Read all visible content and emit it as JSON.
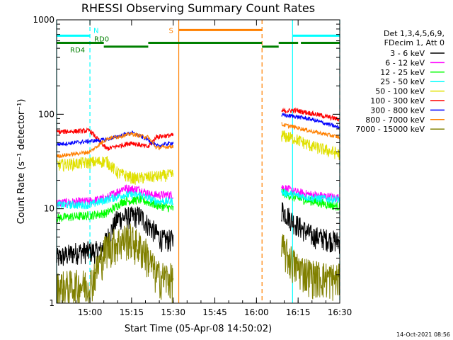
{
  "chart_data": {
    "type": "line",
    "title": "RHESSI Observing Summary Count Rates",
    "xlabel": "Start Time (05-Apr-08 14:50:02)",
    "ylabel": "Count Rate (s⁻¹ detector⁻¹)",
    "yscale": "log",
    "ylim": [
      1,
      1000
    ],
    "xlim_minutes": [
      -2,
      100
    ],
    "x_tick_labels": [
      "15:00",
      "15:15",
      "15:30",
      "15:45",
      "16:00",
      "16:15",
      "16:30"
    ],
    "x_ticks_minutes": [
      10,
      25,
      40,
      55,
      70,
      85,
      100
    ],
    "y_tick_labels": [
      "1",
      "10",
      "100",
      "1000"
    ],
    "y_ticks": [
      1,
      10,
      100,
      1000
    ],
    "legend_header": [
      "Det 1,3,4,5,6,9,",
      "FDecim 1, Att 0"
    ],
    "legend_position": "top-right",
    "series": [
      {
        "name": "3 - 6 keV",
        "color": "#000000",
        "points": [
          [
            -2,
            3
          ],
          [
            5,
            3.5
          ],
          [
            14,
            3.6
          ],
          [
            20,
            8
          ],
          [
            28,
            8.5
          ],
          [
            36,
            4.7
          ],
          [
            40,
            4.7
          ]
        ],
        "points2": [
          [
            79,
            10
          ],
          [
            84,
            7
          ],
          [
            90,
            5.2
          ],
          [
            100,
            4.5
          ]
        ]
      },
      {
        "name": "6 - 12 keV",
        "color": "#ff00ff",
        "points": [
          [
            -2,
            11.5
          ],
          [
            10,
            12
          ],
          [
            16,
            13
          ],
          [
            22,
            16.5
          ],
          [
            28,
            16
          ],
          [
            32,
            14
          ],
          [
            40,
            14
          ]
        ],
        "points2": [
          [
            79,
            17
          ],
          [
            84,
            15
          ],
          [
            90,
            14
          ],
          [
            100,
            13
          ]
        ]
      },
      {
        "name": "12 - 25 keV",
        "color": "#00ff00",
        "points": [
          [
            -2,
            8
          ],
          [
            10,
            8.5
          ],
          [
            16,
            9
          ],
          [
            22,
            12
          ],
          [
            28,
            12.5
          ],
          [
            34,
            11
          ],
          [
            40,
            10
          ]
        ],
        "points2": [
          [
            79,
            15
          ],
          [
            84,
            13
          ],
          [
            90,
            12
          ],
          [
            100,
            10.5
          ]
        ]
      },
      {
        "name": "25 - 50 keV",
        "color": "#00ffff",
        "points": [
          [
            -2,
            11
          ],
          [
            10,
            11
          ],
          [
            16,
            12.5
          ],
          [
            22,
            14
          ],
          [
            28,
            14
          ],
          [
            34,
            12
          ],
          [
            40,
            12
          ]
        ],
        "points2": [
          [
            79,
            15
          ],
          [
            84,
            14
          ],
          [
            90,
            13
          ],
          [
            100,
            12.5
          ]
        ]
      },
      {
        "name": "50 - 100 keV",
        "color": "#e0e000",
        "points": [
          [
            -2,
            29
          ],
          [
            10,
            31
          ],
          [
            16,
            32
          ],
          [
            20,
            24
          ],
          [
            26,
            21
          ],
          [
            34,
            22
          ],
          [
            40,
            23
          ]
        ],
        "points2": [
          [
            79,
            60
          ],
          [
            84,
            55
          ],
          [
            90,
            46
          ],
          [
            100,
            38
          ]
        ]
      },
      {
        "name": "100 - 300 keV",
        "color": "#ff0000",
        "points": [
          [
            -2,
            65
          ],
          [
            10,
            67
          ],
          [
            16,
            43
          ],
          [
            25,
            50
          ],
          [
            31,
            45
          ],
          [
            34,
            58
          ],
          [
            40,
            60
          ]
        ],
        "points2": [
          [
            79,
            108
          ],
          [
            84,
            110
          ],
          [
            90,
            102
          ],
          [
            100,
            88
          ]
        ]
      },
      {
        "name": "300 - 800 keV",
        "color": "#0000ff",
        "points": [
          [
            -2,
            48
          ],
          [
            10,
            52
          ],
          [
            16,
            54
          ],
          [
            25,
            64
          ],
          [
            31,
            54
          ],
          [
            34,
            46
          ],
          [
            40,
            50
          ]
        ],
        "points2": [
          [
            79,
            98
          ],
          [
            84,
            95
          ],
          [
            90,
            88
          ],
          [
            100,
            72
          ]
        ]
      },
      {
        "name": "800 - 7000 keV",
        "color": "#ff8000",
        "points": [
          [
            -2,
            36
          ],
          [
            10,
            40
          ],
          [
            16,
            55
          ],
          [
            25,
            62
          ],
          [
            31,
            57
          ],
          [
            34,
            44
          ],
          [
            40,
            46
          ]
        ],
        "points2": [
          [
            79,
            78
          ],
          [
            84,
            73
          ],
          [
            90,
            66
          ],
          [
            100,
            57
          ]
        ]
      },
      {
        "name": "7000 - 15000 keV",
        "color": "#808000",
        "points": [
          [
            -2,
            1.5
          ],
          [
            10,
            1.6
          ],
          [
            16,
            4
          ],
          [
            24,
            5
          ],
          [
            30,
            3.5
          ],
          [
            34,
            2
          ],
          [
            40,
            1.8
          ]
        ],
        "points2": [
          [
            79,
            4
          ],
          [
            84,
            2.5
          ],
          [
            90,
            2
          ],
          [
            100,
            1.8
          ]
        ]
      }
    ],
    "status_bars": {
      "night": {
        "label": "N",
        "color": "#00ffff",
        "y": 680,
        "segments": [
          [
            -2,
            10
          ],
          [
            83,
            100
          ]
        ]
      },
      "saa": {
        "label": "S",
        "color": "#ff8000",
        "y": 780,
        "segments": [
          [
            42,
            72
          ]
        ]
      },
      "rd0": {
        "label": "RD0",
        "color": "#008000",
        "y": 570,
        "segments": [
          [
            -2,
            15
          ],
          [
            31,
            72
          ],
          [
            78,
            85
          ],
          [
            86,
            100
          ]
        ]
      },
      "rd4": {
        "label": "RD4",
        "color": "#008000",
        "y": 520,
        "segments": [
          [
            15,
            31
          ],
          [
            72,
            78
          ]
        ]
      }
    },
    "markers": {
      "cyan_solid_minutes": [
        -2,
        83
      ],
      "cyan_dashed_minutes": [
        10,
        100
      ],
      "orange_solid_minutes": [
        42
      ],
      "orange_dashed_minutes": [
        72
      ]
    },
    "grid": false
  },
  "footer": {
    "timestamp": "14-Oct-2021 08:56"
  }
}
